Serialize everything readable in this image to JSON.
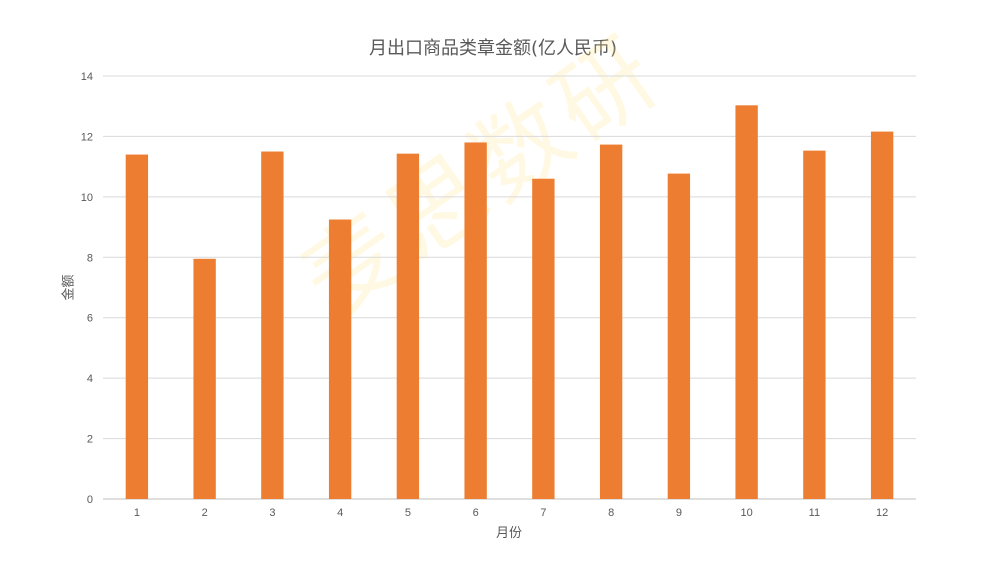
{
  "chart_data": {
    "type": "bar",
    "title": "月出口商品类章金额(亿人民币)",
    "xlabel": "月份",
    "ylabel": "金额",
    "categories": [
      "1",
      "2",
      "3",
      "4",
      "5",
      "6",
      "7",
      "8",
      "9",
      "10",
      "11",
      "12"
    ],
    "values": [
      11.4,
      7.95,
      11.5,
      9.25,
      11.43,
      11.8,
      10.6,
      11.73,
      10.77,
      13.03,
      11.53,
      12.16
    ],
    "ylim": [
      0,
      14
    ],
    "yticks": [
      0,
      2,
      4,
      6,
      8,
      10,
      12,
      14
    ],
    "grid": true,
    "legend": "none",
    "bar_color": "#ED7D31"
  },
  "watermark": "麦思数研"
}
